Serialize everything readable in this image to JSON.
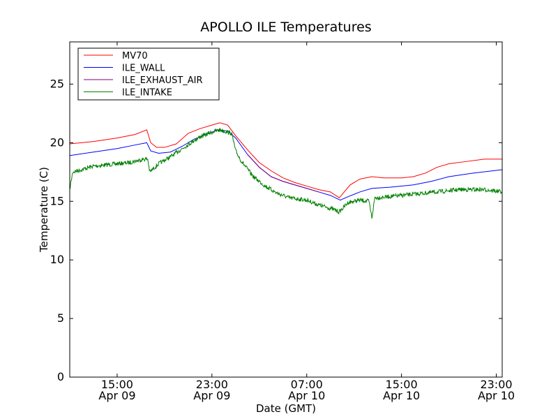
{
  "chart_data": {
    "type": "line",
    "title": "APOLLO ILE Temperatures",
    "xlabel": "Date (GMT)",
    "ylabel": "Temperature (C)",
    "ylim": [
      0,
      28.6
    ],
    "xlim": [
      "2012-04-09T11:00",
      "2012-04-10T23:30"
    ],
    "yticks": [
      0,
      5,
      10,
      15,
      20,
      25
    ],
    "xticks": [
      {
        "t": "2012-04-09T15:00",
        "time": "15:00",
        "date": "Apr 09"
      },
      {
        "t": "2012-04-09T23:00",
        "time": "23:00",
        "date": "Apr 09"
      },
      {
        "t": "2012-04-10T07:00",
        "time": "07:00",
        "date": "Apr 10"
      },
      {
        "t": "2012-04-10T15:00",
        "time": "15:00",
        "date": "Apr 10"
      },
      {
        "t": "2012-04-10T23:00",
        "time": "23:00",
        "date": "Apr 10"
      }
    ],
    "grid": false,
    "legend": "top-left",
    "series": [
      {
        "name": "MV70",
        "color": "#ff0000",
        "noise": 0,
        "points": [
          [
            "2012-04-09T11:00",
            19.9
          ],
          [
            "2012-04-09T13:00",
            20.1
          ],
          [
            "2012-04-09T15:00",
            20.4
          ],
          [
            "2012-04-09T16:30",
            20.7
          ],
          [
            "2012-04-09T17:30",
            21.1
          ],
          [
            "2012-04-09T17:50",
            20.0
          ],
          [
            "2012-04-09T18:20",
            19.6
          ],
          [
            "2012-04-09T19:00",
            19.6
          ],
          [
            "2012-04-09T20:00",
            19.9
          ],
          [
            "2012-04-09T21:00",
            20.8
          ],
          [
            "2012-04-09T22:00",
            21.2
          ],
          [
            "2012-04-09T23:00",
            21.5
          ],
          [
            "2012-04-09T23:40",
            21.7
          ],
          [
            "2012-04-10T00:20",
            21.5
          ],
          [
            "2012-04-10T01:00",
            20.6
          ],
          [
            "2012-04-10T02:00",
            19.4
          ],
          [
            "2012-04-10T03:00",
            18.3
          ],
          [
            "2012-04-10T04:00",
            17.6
          ],
          [
            "2012-04-10T05:00",
            17.0
          ],
          [
            "2012-04-10T06:00",
            16.6
          ],
          [
            "2012-04-10T07:00",
            16.3
          ],
          [
            "2012-04-10T08:00",
            16.0
          ],
          [
            "2012-04-10T09:00",
            15.8
          ],
          [
            "2012-04-10T09:45",
            15.3
          ],
          [
            "2012-04-10T10:00",
            15.6
          ],
          [
            "2012-04-10T10:40",
            16.4
          ],
          [
            "2012-04-10T11:30",
            16.9
          ],
          [
            "2012-04-10T12:30",
            17.1
          ],
          [
            "2012-04-10T13:30",
            17.0
          ],
          [
            "2012-04-10T15:00",
            17.0
          ],
          [
            "2012-04-10T16:00",
            17.1
          ],
          [
            "2012-04-10T17:00",
            17.4
          ],
          [
            "2012-04-10T18:00",
            17.9
          ],
          [
            "2012-04-10T19:00",
            18.2
          ],
          [
            "2012-04-10T20:30",
            18.4
          ],
          [
            "2012-04-10T22:00",
            18.6
          ],
          [
            "2012-04-10T23:30",
            18.6
          ]
        ]
      },
      {
        "name": "ILE_WALL",
        "color": "#0000ff",
        "noise": 0,
        "points": [
          [
            "2012-04-09T11:00",
            18.9
          ],
          [
            "2012-04-09T13:00",
            19.2
          ],
          [
            "2012-04-09T15:00",
            19.5
          ],
          [
            "2012-04-09T16:30",
            19.8
          ],
          [
            "2012-04-09T17:30",
            20.0
          ],
          [
            "2012-04-09T17:50",
            19.3
          ],
          [
            "2012-04-09T18:30",
            19.1
          ],
          [
            "2012-04-09T19:30",
            19.2
          ],
          [
            "2012-04-09T20:30",
            19.7
          ],
          [
            "2012-04-09T21:30",
            20.3
          ],
          [
            "2012-04-09T22:30",
            20.7
          ],
          [
            "2012-04-09T23:30",
            21.1
          ],
          [
            "2012-04-10T00:20",
            21.0
          ],
          [
            "2012-04-10T01:00",
            20.4
          ],
          [
            "2012-04-10T02:00",
            19.0
          ],
          [
            "2012-04-10T03:00",
            17.9
          ],
          [
            "2012-04-10T04:00",
            17.1
          ],
          [
            "2012-04-10T05:00",
            16.7
          ],
          [
            "2012-04-10T06:00",
            16.4
          ],
          [
            "2012-04-10T07:00",
            16.1
          ],
          [
            "2012-04-10T08:00",
            15.8
          ],
          [
            "2012-04-10T09:00",
            15.5
          ],
          [
            "2012-04-10T09:50",
            15.1
          ],
          [
            "2012-04-10T10:30",
            15.4
          ],
          [
            "2012-04-10T11:30",
            15.8
          ],
          [
            "2012-04-10T12:30",
            16.1
          ],
          [
            "2012-04-10T14:00",
            16.2
          ],
          [
            "2012-04-10T16:00",
            16.4
          ],
          [
            "2012-04-10T17:30",
            16.7
          ],
          [
            "2012-04-10T19:00",
            17.1
          ],
          [
            "2012-04-10T21:00",
            17.4
          ],
          [
            "2012-04-10T23:30",
            17.7
          ]
        ]
      },
      {
        "name": "ILE_EXHAUST_AIR",
        "color": "#800080",
        "noise": 0,
        "points": [
          [
            "2012-04-10T02:00",
            19.0
          ],
          [
            "2012-04-10T03:00",
            17.9
          ],
          [
            "2012-04-10T04:00",
            17.1
          ],
          [
            "2012-04-10T05:00",
            16.7
          ],
          [
            "2012-04-10T06:00",
            16.4
          ],
          [
            "2012-04-10T07:00",
            16.1
          ],
          [
            "2012-04-10T08:00",
            15.8
          ]
        ]
      },
      {
        "name": "ILE_INTAKE",
        "color": "#008000",
        "noise": 0.18,
        "points": [
          [
            "2012-04-09T11:00",
            16.0
          ],
          [
            "2012-04-09T11:15",
            17.5
          ],
          [
            "2012-04-09T12:00",
            17.7
          ],
          [
            "2012-04-09T13:00",
            18.0
          ],
          [
            "2012-04-09T14:00",
            18.1
          ],
          [
            "2012-04-09T15:00",
            18.2
          ],
          [
            "2012-04-09T16:00",
            18.3
          ],
          [
            "2012-04-09T17:15",
            18.6
          ],
          [
            "2012-04-09T17:35",
            18.6
          ],
          [
            "2012-04-09T17:45",
            17.5
          ],
          [
            "2012-04-09T18:30",
            18.2
          ],
          [
            "2012-04-09T19:30",
            18.8
          ],
          [
            "2012-04-09T20:30",
            19.5
          ],
          [
            "2012-04-09T21:30",
            20.2
          ],
          [
            "2012-04-09T22:00",
            20.5
          ],
          [
            "2012-04-09T23:00",
            20.9
          ],
          [
            "2012-04-09T23:40",
            21.1
          ],
          [
            "2012-04-10T00:40",
            20.8
          ],
          [
            "2012-04-10T01:00",
            19.3
          ],
          [
            "2012-04-10T01:30",
            18.4
          ],
          [
            "2012-04-10T02:30",
            17.1
          ],
          [
            "2012-04-10T03:30",
            16.3
          ],
          [
            "2012-04-10T04:30",
            15.7
          ],
          [
            "2012-04-10T05:30",
            15.3
          ],
          [
            "2012-04-10T07:00",
            15.1
          ],
          [
            "2012-04-10T08:00",
            14.7
          ],
          [
            "2012-04-10T09:00",
            14.4
          ],
          [
            "2012-04-10T09:45",
            14.1
          ],
          [
            "2012-04-10T10:30",
            14.9
          ],
          [
            "2012-04-10T11:30",
            15.1
          ],
          [
            "2012-04-10T12:15",
            15.0
          ],
          [
            "2012-04-10T12:30",
            13.6
          ],
          [
            "2012-04-10T12:45",
            15.3
          ],
          [
            "2012-04-10T14:00",
            15.4
          ],
          [
            "2012-04-10T16:00",
            15.6
          ],
          [
            "2012-04-10T18:00",
            15.8
          ],
          [
            "2012-04-10T20:00",
            16.0
          ],
          [
            "2012-04-10T22:00",
            16.0
          ],
          [
            "2012-04-10T23:30",
            15.8
          ]
        ]
      }
    ]
  }
}
